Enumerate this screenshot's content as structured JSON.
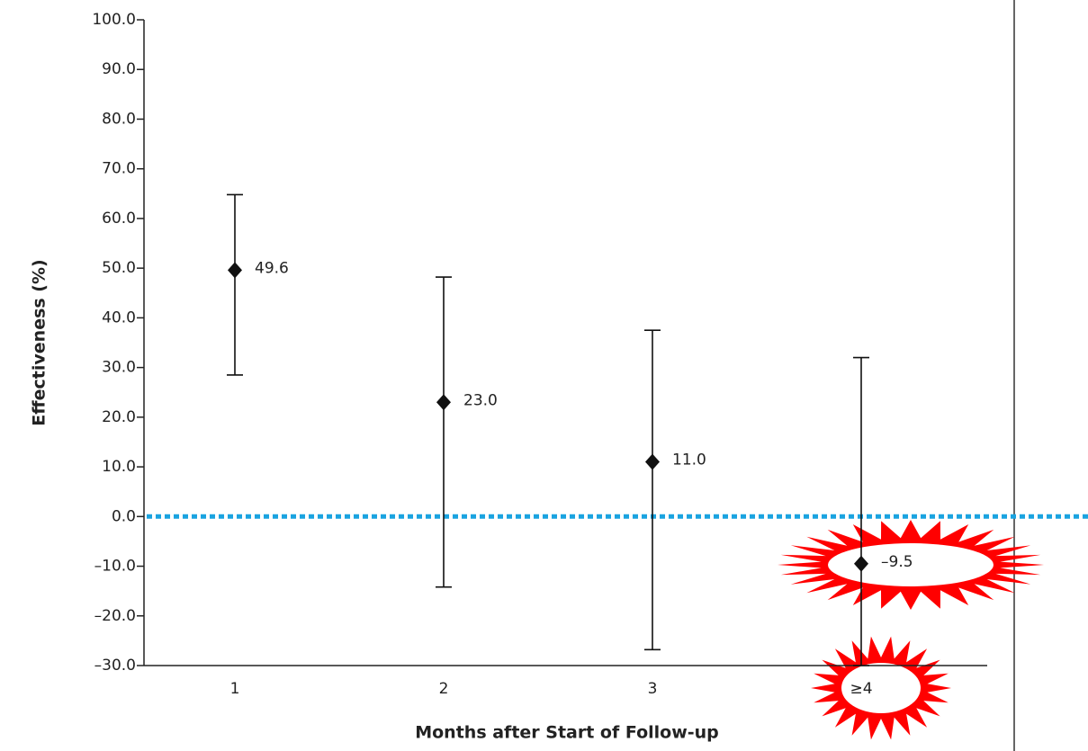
{
  "chart_data": {
    "type": "errorbar",
    "x_label": "Months after Start of Follow-up",
    "y_label": "Effectiveness (%)",
    "categories": [
      "1",
      "2",
      "3",
      "≥4"
    ],
    "values": [
      49.6,
      23.0,
      11.0,
      -9.5
    ],
    "value_labels": [
      "49.6",
      "23.0",
      "11.0",
      "–9.5"
    ],
    "ci_lower": [
      28.5,
      -14.2,
      -26.8,
      -30.0
    ],
    "ci_upper": [
      64.8,
      48.2,
      37.5,
      32.0
    ],
    "color": "#111111",
    "reference_line": {
      "value": 0,
      "color": "#1aa3e0"
    },
    "ylim": [
      -30,
      100
    ],
    "yticks": [
      {
        "value": 100,
        "label": "100.0"
      },
      {
        "value": 90,
        "label": "90.0"
      },
      {
        "value": 80,
        "label": "80.0"
      },
      {
        "value": 70,
        "label": "70.0"
      },
      {
        "value": 60,
        "label": "60.0"
      },
      {
        "value": 50,
        "label": "50.0"
      },
      {
        "value": 40,
        "label": "40.0"
      },
      {
        "value": 30,
        "label": "30.0"
      },
      {
        "value": 20,
        "label": "20.0"
      },
      {
        "value": 10,
        "label": "10.0"
      },
      {
        "value": 0,
        "label": "0.0"
      },
      {
        "value": -10,
        "label": "–10.0"
      },
      {
        "value": -20,
        "label": "–20.0"
      },
      {
        "value": -30,
        "label": "–30.0"
      }
    ]
  }
}
